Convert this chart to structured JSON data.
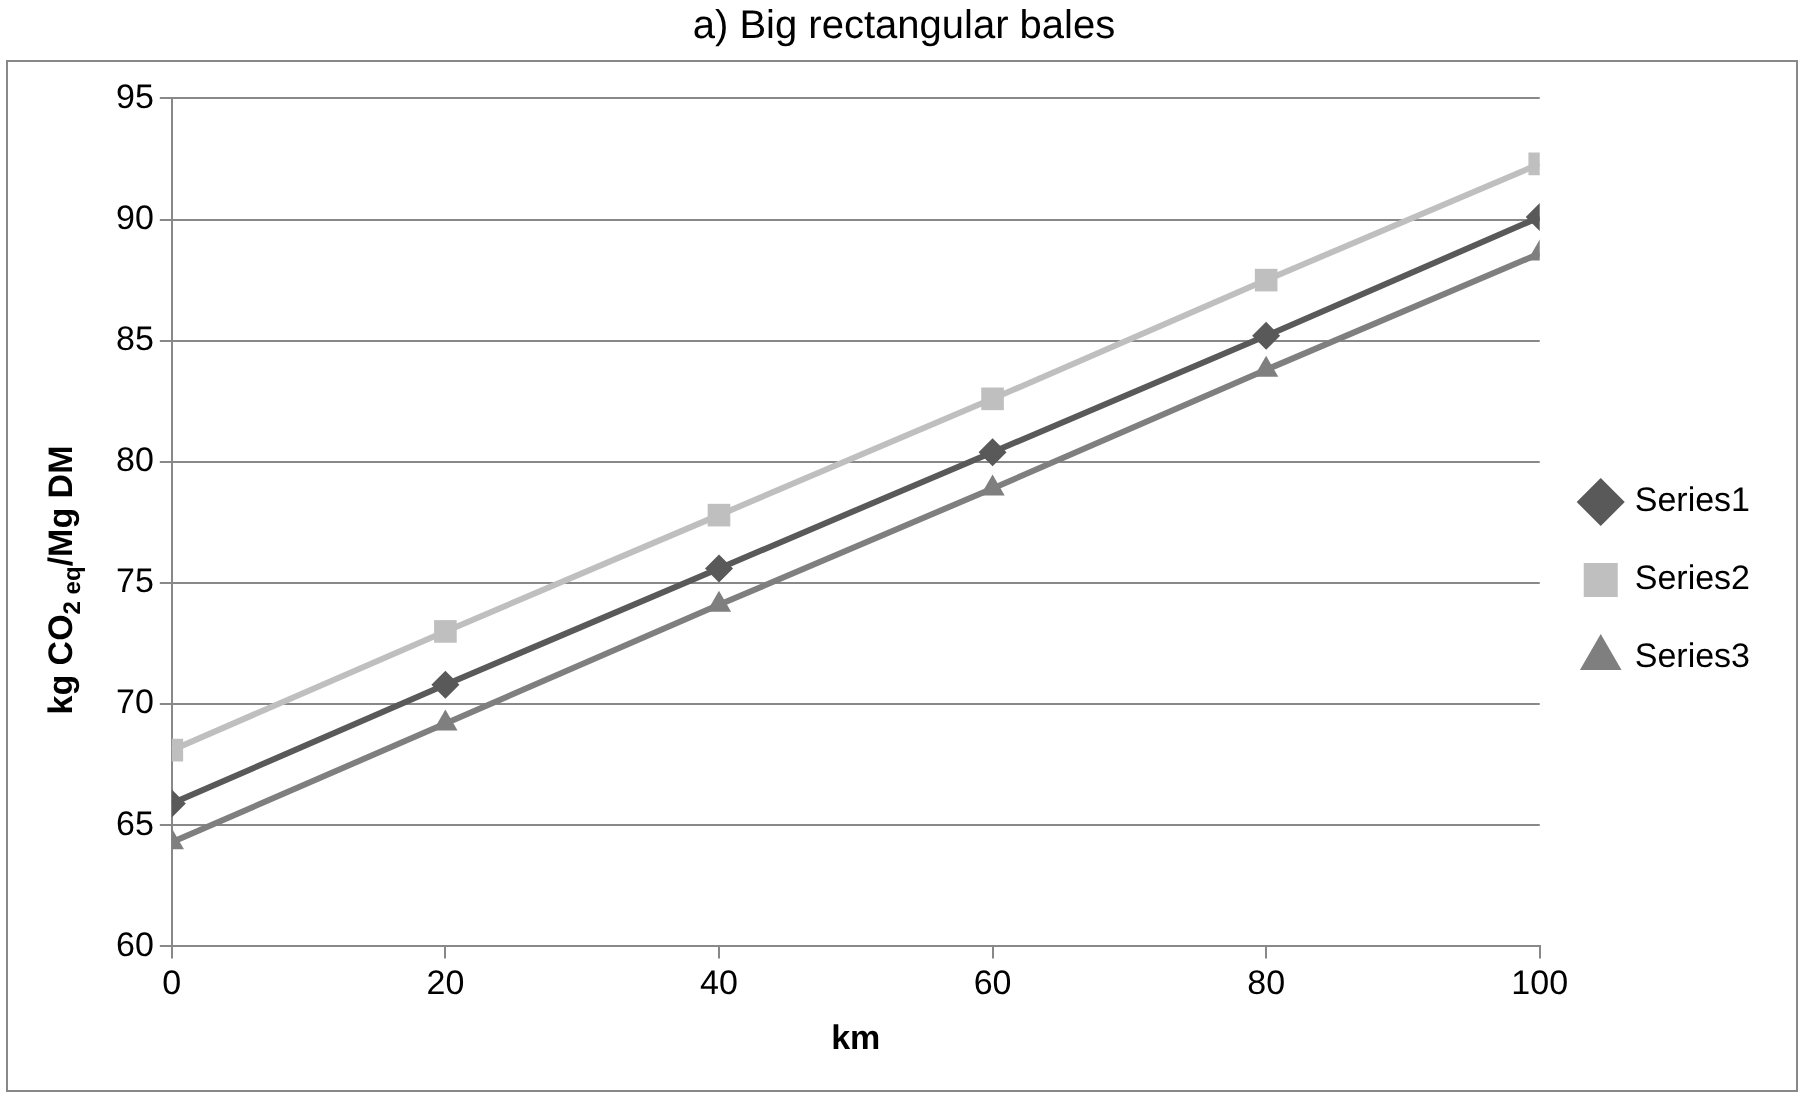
{
  "chart_data": {
    "type": "line",
    "title": "a) Big rectangular bales",
    "xlabel": "km",
    "ylabel": "kg CO$_{2 eq}$/Mg DM",
    "x": [
      0,
      20,
      40,
      60,
      80,
      100
    ],
    "series": [
      {
        "name": "Series1",
        "color": "#595959",
        "marker": "diamond",
        "values": [
          65.9,
          70.8,
          75.6,
          80.4,
          85.2,
          90.1
        ]
      },
      {
        "name": "Series2",
        "color": "#bfbfbf",
        "marker": "square",
        "values": [
          68.1,
          73.0,
          77.8,
          82.6,
          87.5,
          92.3
        ]
      },
      {
        "name": "Series3",
        "color": "#7f7f7f",
        "marker": "triangle",
        "values": [
          64.3,
          69.2,
          74.1,
          78.9,
          83.8,
          88.6
        ]
      }
    ],
    "xlim": [
      0,
      100
    ],
    "xticks": [
      0,
      20,
      40,
      60,
      80,
      100
    ],
    "ylim": [
      60,
      95
    ],
    "yticks": [
      60,
      65,
      70,
      75,
      80,
      85,
      90,
      95
    ],
    "grid": "y",
    "legend": "right",
    "line_style": "solid"
  }
}
